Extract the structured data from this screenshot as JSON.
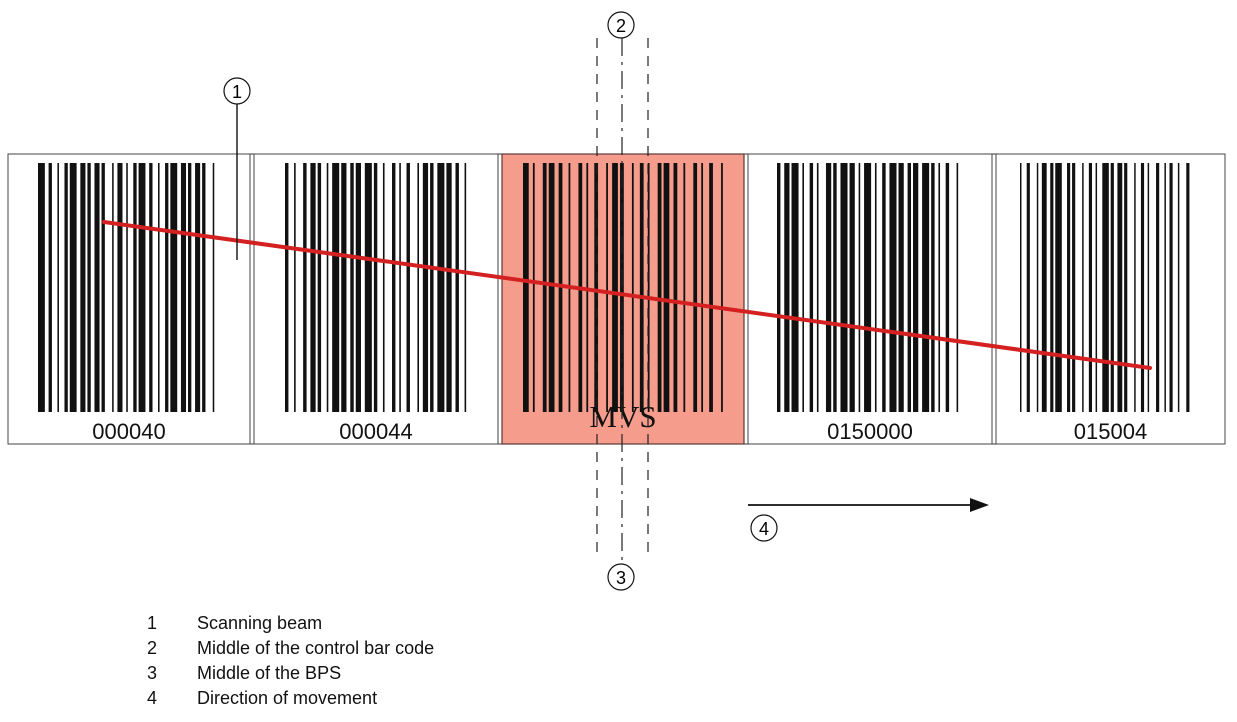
{
  "callouts": {
    "scanning_beam": "1",
    "control_middle": "2",
    "bps_middle": "3",
    "direction": "4"
  },
  "bar_codes": {
    "code_1": "000040",
    "code_2": "000044",
    "control": "MVS",
    "code_4": "0150000",
    "code_5": "015004"
  },
  "legend": [
    {
      "number": "1",
      "label": "Scanning beam"
    },
    {
      "number": "2",
      "label": "Middle of the control bar code"
    },
    {
      "number": "3",
      "label": "Middle of the BPS"
    },
    {
      "number": "4",
      "label": "Direction of movement"
    }
  ],
  "colors": {
    "control_highlight": "#f59c8c",
    "scanning_beam": "#d42020",
    "bars": "#111111"
  }
}
